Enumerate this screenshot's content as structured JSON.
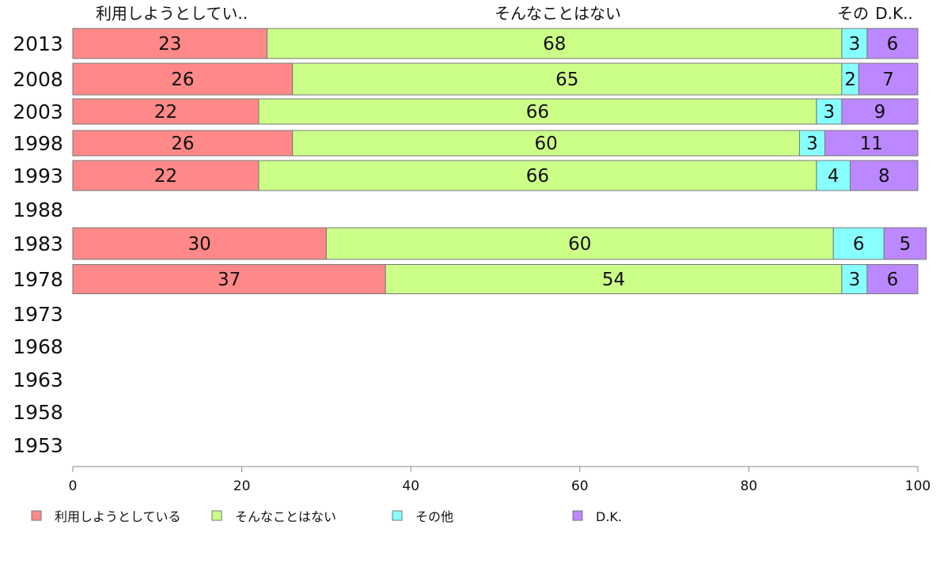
{
  "chart_data": {
    "type": "bar",
    "orientation": "horizontal",
    "stacked": true,
    "header_labels": [
      "利用しようとしてい..",
      "そんなことはない",
      "その",
      "D.K.."
    ],
    "categories": [
      "2013",
      "2008",
      "2003",
      "1998",
      "1993",
      "1988",
      "1983",
      "1978",
      "1973",
      "1968",
      "1963",
      "1958",
      "1953"
    ],
    "series": [
      {
        "name": "利用しようとしている",
        "color": "#ff8888",
        "values": [
          23,
          26,
          22,
          26,
          22,
          null,
          30,
          37,
          null,
          null,
          null,
          null,
          null
        ]
      },
      {
        "name": "そんなことはない",
        "color": "#ccff88",
        "values": [
          68,
          65,
          66,
          60,
          66,
          null,
          60,
          54,
          null,
          null,
          null,
          null,
          null
        ]
      },
      {
        "name": "その他",
        "color": "#88ffff",
        "values": [
          3,
          2,
          3,
          3,
          4,
          null,
          6,
          3,
          null,
          null,
          null,
          null,
          null
        ]
      },
      {
        "name": "D.K.",
        "color": "#bb88ff",
        "values": [
          6,
          7,
          9,
          11,
          8,
          null,
          5,
          6,
          null,
          null,
          null,
          null,
          null
        ]
      }
    ],
    "xlim": [
      0,
      100
    ],
    "x_ticks": [
      "0",
      "20",
      "40",
      "60",
      "80",
      "100"
    ],
    "grid": false,
    "legend_position": "bottom"
  }
}
